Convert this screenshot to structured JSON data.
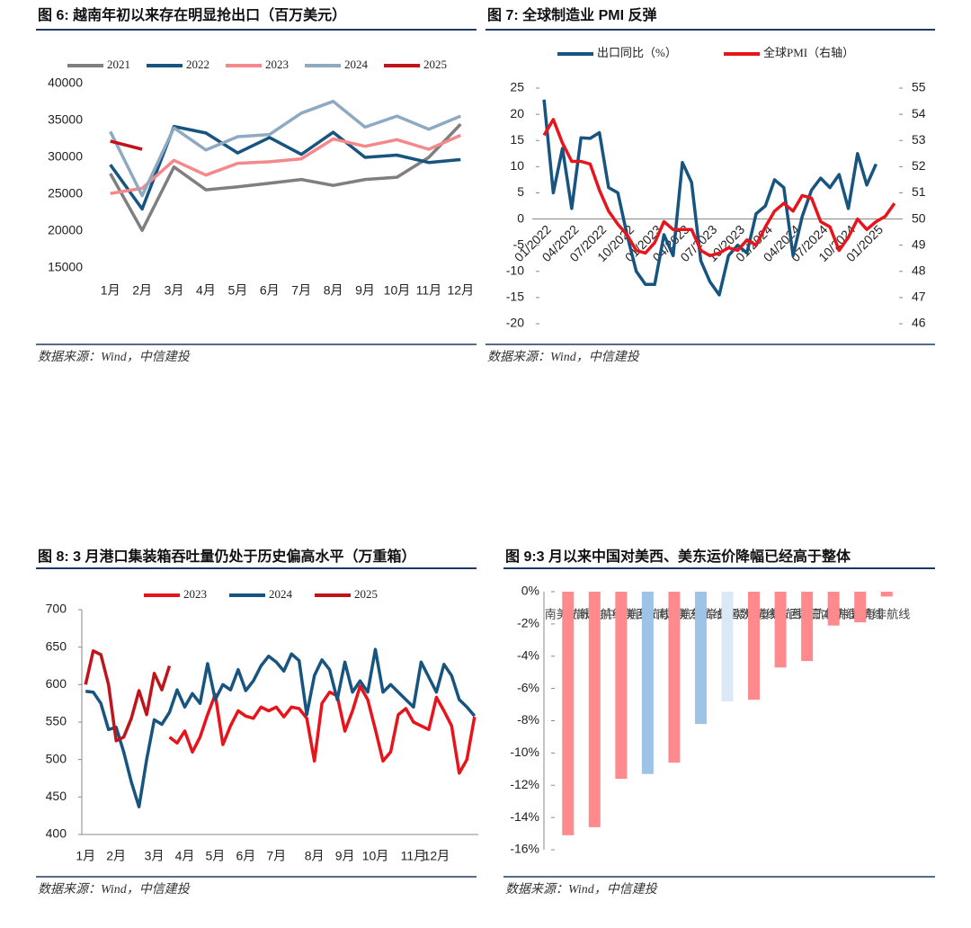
{
  "chart_data": [
    {
      "type": "line",
      "title": "图 6: 越南年初以来存在明显抢出口（百万美元）",
      "source": "数据来源：Wind，中信建投",
      "categories": [
        "1月",
        "2月",
        "3月",
        "4月",
        "5月",
        "6月",
        "7月",
        "8月",
        "9月",
        "10月",
        "11月",
        "12月"
      ],
      "series": [
        {
          "name": "2021",
          "color": "#7f7f7f",
          "values": [
            27800,
            20100,
            28700,
            25600,
            26000,
            26500,
            27000,
            26200,
            27000,
            27300,
            30000,
            34500
          ]
        },
        {
          "name": "2022",
          "color": "#17547f",
          "values": [
            29000,
            23000,
            34200,
            33300,
            30600,
            32700,
            30400,
            33400,
            30000,
            30300,
            29300,
            29700
          ]
        },
        {
          "name": "2023",
          "color": "#f4888a",
          "values": [
            25100,
            25800,
            29600,
            27600,
            29200,
            29400,
            29800,
            32500,
            31500,
            32400,
            31100,
            33000
          ]
        },
        {
          "name": "2024",
          "color": "#8eaac3",
          "values": [
            33500,
            24800,
            34000,
            31000,
            32800,
            33100,
            36000,
            37600,
            34100,
            35600,
            33800,
            35600
          ]
        },
        {
          "name": "2025",
          "color": "#c0141b",
          "values": [
            32200,
            31100,
            null,
            null,
            null,
            null,
            null,
            null,
            null,
            null,
            null,
            null
          ]
        }
      ],
      "ylim": [
        15000,
        40000
      ],
      "yticks": [
        15000,
        20000,
        25000,
        30000,
        35000,
        40000
      ]
    },
    {
      "type": "line",
      "title": "图 7: 全球制造业 PMI 反弹",
      "source": "数据来源：Wind，中信建投",
      "categories": [
        "01/2022",
        null,
        null,
        "04/2022",
        null,
        null,
        "07/2022",
        null,
        null,
        "10/2022",
        null,
        null,
        "01/2023",
        null,
        null,
        "04/2023",
        null,
        null,
        "07/2023",
        null,
        null,
        "10/2023",
        null,
        null,
        "01/2024",
        null,
        null,
        "04/2024",
        null,
        null,
        "07/2024",
        null,
        null,
        "10/2024",
        null,
        null,
        "01/2025",
        null,
        null
      ],
      "series": [
        {
          "name": "出口同比（%）",
          "color": "#17547f",
          "values": [
            22.8,
            5,
            13.5,
            2,
            15.5,
            15.4,
            16.5,
            6,
            5,
            -3,
            -10,
            -12.5,
            -12.5,
            -3,
            -7,
            10.8,
            7,
            -8,
            -12,
            -14.5,
            -7,
            -5,
            -6.5,
            1,
            2.5,
            7.5,
            6,
            -7,
            0.5,
            5.5,
            7.8,
            6,
            8.5,
            2,
            12.5,
            6.5,
            10.5,
            null,
            null
          ]
        },
        {
          "name": "全球PMI（右轴）",
          "color": "#e8141b",
          "axis": "y2",
          "values": [
            53.2,
            53.8,
            52.9,
            52.2,
            52.2,
            52.1,
            51.1,
            50.3,
            49.8,
            49.4,
            48.8,
            48.7,
            49.1,
            49.9,
            49.6,
            49.6,
            49.6,
            48.8,
            48.6,
            48.7,
            48.9,
            48.8,
            49.2,
            49.0,
            49.7,
            50.3,
            50.6,
            50.3,
            50.9,
            50.8,
            49.9,
            49.7,
            48.8,
            49.3,
            50.0,
            49.6,
            49.9,
            50.1,
            50.6
          ]
        }
      ],
      "ylim": [
        -20,
        25
      ],
      "yticks": [
        -20,
        -15,
        -10,
        -5,
        0,
        5,
        10,
        15,
        20,
        25
      ],
      "y2lim": [
        46,
        55
      ],
      "y2ticks": [
        46,
        47,
        48,
        49,
        50,
        51,
        52,
        53,
        54,
        55
      ]
    },
    {
      "type": "line",
      "title": "图 8: 3 月港口集装箱吞吐量仍处于历史偏高水平（万重箱）",
      "source": "数据来源：Wind，中信建投",
      "categories": [
        "1月",
        null,
        null,
        null,
        "2月",
        null,
        null,
        null,
        null,
        "3月",
        null,
        null,
        null,
        "4月",
        null,
        null,
        null,
        "5月",
        null,
        null,
        null,
        "6月",
        null,
        null,
        null,
        "7月",
        null,
        null,
        null,
        null,
        "8月",
        null,
        null,
        null,
        "9月",
        null,
        null,
        null,
        "10月",
        null,
        null,
        null,
        null,
        "11月",
        null,
        null,
        "12月",
        null,
        null,
        null,
        null,
        null
      ],
      "series": [
        {
          "name": "2023",
          "color": "#e8141b",
          "values": [
            null,
            null,
            null,
            null,
            null,
            null,
            null,
            null,
            null,
            null,
            null,
            530,
            522,
            538,
            510,
            530,
            560,
            587,
            520,
            545,
            565,
            558,
            555,
            570,
            565,
            570,
            557,
            570,
            568,
            555,
            498,
            575,
            590,
            585,
            538,
            565,
            598,
            580,
            540,
            498,
            510,
            560,
            568,
            550,
            545,
            540,
            583,
            565,
            545,
            482,
            500,
            557
          ]
        },
        {
          "name": "2024",
          "color": "#17547f",
          "values": [
            591,
            590,
            575,
            540,
            543,
            510,
            470,
            437,
            500,
            553,
            547,
            563,
            593,
            570,
            588,
            575,
            628,
            580,
            600,
            593,
            620,
            592,
            605,
            625,
            638,
            630,
            618,
            641,
            632,
            560,
            612,
            633,
            620,
            580,
            630,
            590,
            605,
            590,
            647,
            590,
            600,
            590,
            580,
            570,
            630,
            610,
            590,
            627,
            612,
            580,
            570,
            558
          ]
        },
        {
          "name": "2025",
          "color": "#c0141b",
          "values": [
            600,
            645,
            640,
            600,
            525,
            530,
            555,
            592,
            560,
            615,
            593,
            625,
            null,
            null,
            null,
            null,
            null,
            null,
            null,
            null,
            null,
            null,
            null,
            null,
            null,
            null,
            null,
            null,
            null,
            null,
            null,
            null,
            null,
            null,
            null,
            null,
            null,
            null,
            null,
            null,
            null,
            null,
            null,
            null,
            null,
            null,
            null,
            null,
            null,
            null,
            null,
            null
          ]
        }
      ],
      "ylim": [
        400,
        700
      ],
      "yticks": [
        400,
        450,
        500,
        550,
        600,
        650,
        700
      ]
    },
    {
      "type": "bar",
      "title": "图 9:3 月以来中国对美西、美东运价降幅已经高于整体",
      "source": "数据来源：Wind，中信建投",
      "categories": [
        "南美航线",
        "波斯湾航线",
        "地中海航线",
        "美西航线",
        "东南亚航线",
        "美东航线",
        "综合指数",
        "欧洲航线",
        "澳新航线",
        "东西非航线",
        "日本航线",
        "韩国航线",
        "南非航线"
      ],
      "values": [
        -15.1,
        -14.6,
        -11.6,
        -11.3,
        -10.6,
        -8.2,
        -6.8,
        -6.7,
        -4.7,
        -4.3,
        -2.1,
        -1.9,
        -0.3
      ],
      "colors": [
        "#ff8a8e",
        "#ff8a8e",
        "#ff8a8e",
        "#9dc3e6",
        "#ff8a8e",
        "#9dc3e6",
        "#dbe8f5",
        "#ff8a8e",
        "#ff8a8e",
        "#ff8a8e",
        "#ff8a8e",
        "#ff8a8e",
        "#ff8a8e"
      ],
      "ylim": [
        -16,
        0
      ],
      "yticks": [
        {
          "value": -16,
          "label": "-16%"
        },
        {
          "value": -14,
          "label": "-14%"
        },
        {
          "value": -12,
          "label": "-12%"
        },
        {
          "value": -10,
          "label": "-10%"
        },
        {
          "value": -8,
          "label": "-8%"
        },
        {
          "value": -6,
          "label": "-6%"
        },
        {
          "value": -4,
          "label": "-4%"
        },
        {
          "value": -2,
          "label": "-2%"
        },
        {
          "value": 0,
          "label": "0%"
        }
      ]
    }
  ]
}
